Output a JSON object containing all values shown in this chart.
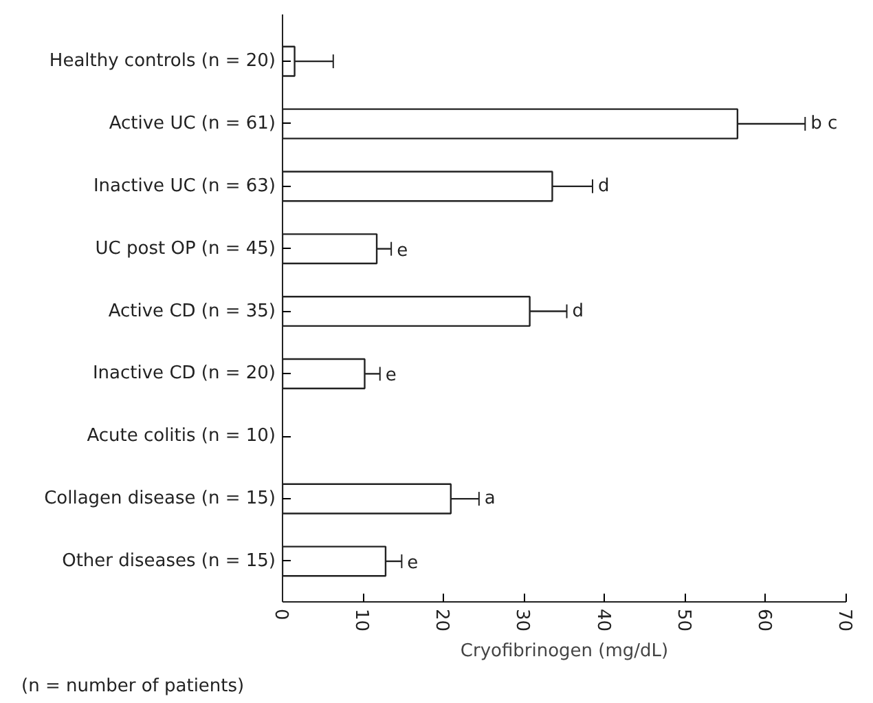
{
  "chart_data": {
    "type": "bar",
    "orientation": "horizontal",
    "xlabel": "Cryofibrinogen (mg/dL)",
    "categories": [
      "Healthy controls (n = 20)",
      "Active UC (n = 61)",
      "Inactive UC (n = 63)",
      "UC post OP (n = 45)",
      "Active CD (n = 35)",
      "Inactive CD (n = 20)",
      "Acute colitis (n = 10)",
      "Collagen disease (n = 15)",
      "Other diseases (n = 15)"
    ],
    "values": [
      1.5,
      56.5,
      33.5,
      11.7,
      30.7,
      10.2,
      null,
      20.9,
      12.8
    ],
    "errors": [
      [
        1.5,
        6.3
      ],
      [
        56.5,
        64.9
      ],
      [
        33.5,
        38.5
      ],
      [
        11.7,
        13.5
      ],
      [
        30.7,
        35.3
      ],
      [
        10.2,
        12.1
      ],
      null,
      [
        20.9,
        24.4
      ],
      [
        12.8,
        14.8
      ]
    ],
    "color": "#ffffff",
    "xlim": [
      0,
      70
    ],
    "xticks": [
      0,
      10,
      20,
      30,
      40,
      50,
      60,
      70
    ],
    "grid": false,
    "annotations": [
      {
        "text": "b c",
        "x": 64.9,
        "y": "Active UC (n = 61)"
      },
      {
        "text": "d",
        "x": 38.5,
        "y": "Inactive UC (n = 63)"
      },
      {
        "text": "e",
        "x": 13.5,
        "y": "UC post OP (n = 45)"
      },
      {
        "text": "d",
        "x": 35.3,
        "y": "Active CD (n = 35)"
      },
      {
        "text": "e",
        "x": 12.1,
        "y": "Inactive CD (n = 20)"
      },
      {
        "text": "a",
        "x": 24.4,
        "y": "Collagen disease (n = 15)"
      },
      {
        "text": "e",
        "x": 14.8,
        "y": "Other diseases (n = 15)"
      },
      "(n = number of patients)"
    ]
  }
}
